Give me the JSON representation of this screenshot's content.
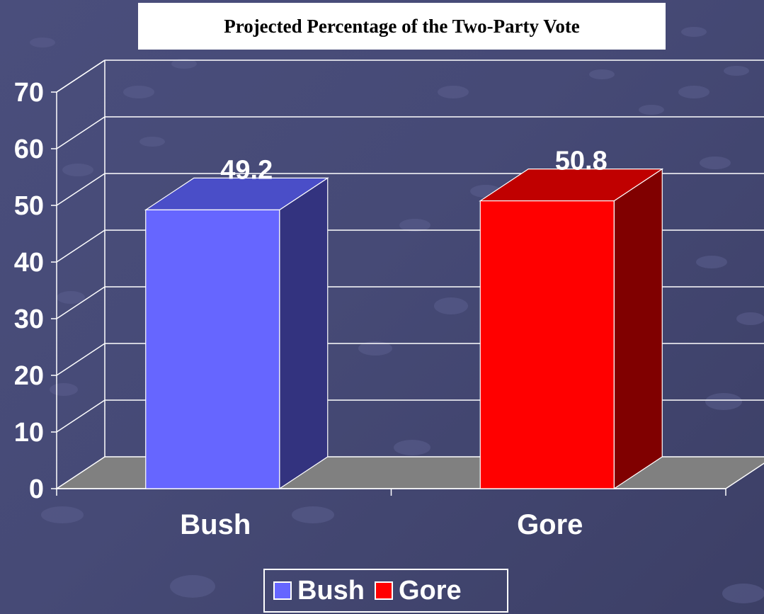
{
  "chart_data": {
    "type": "bar",
    "title": "Projected Percentage of the Two-Party Vote",
    "categories": [
      "Bush",
      "Gore"
    ],
    "series": [
      {
        "name": "Bush",
        "values": [
          49.2,
          null
        ],
        "color": "#6666ff"
      },
      {
        "name": "Gore",
        "values": [
          null,
          50.8
        ],
        "color": "#ff0000"
      }
    ],
    "values": [
      49.2,
      50.8
    ],
    "data_labels": [
      "49.2",
      "50.8"
    ],
    "ylim": [
      0,
      70
    ],
    "y_ticks": [
      0,
      10,
      20,
      30,
      40,
      50,
      60,
      70
    ],
    "y_tick_labels": [
      "0",
      "10",
      "20",
      "30",
      "40",
      "50",
      "60",
      "70"
    ],
    "xlabel": "",
    "ylabel": "",
    "grid": true,
    "three_d": true,
    "legend_position": "bottom",
    "colors": {
      "bush_front": "#6666ff",
      "bush_top": "#4a4ec8",
      "bush_side": "#33337f",
      "gore_front": "#ff0000",
      "gore_top": "#c00000",
      "gore_side": "#800000",
      "floor": "#808080",
      "text": "#ffffff"
    }
  },
  "legend": {
    "items": [
      {
        "label": "Bush",
        "color": "#6666ff"
      },
      {
        "label": "Gore",
        "color": "#ff0000"
      }
    ]
  }
}
